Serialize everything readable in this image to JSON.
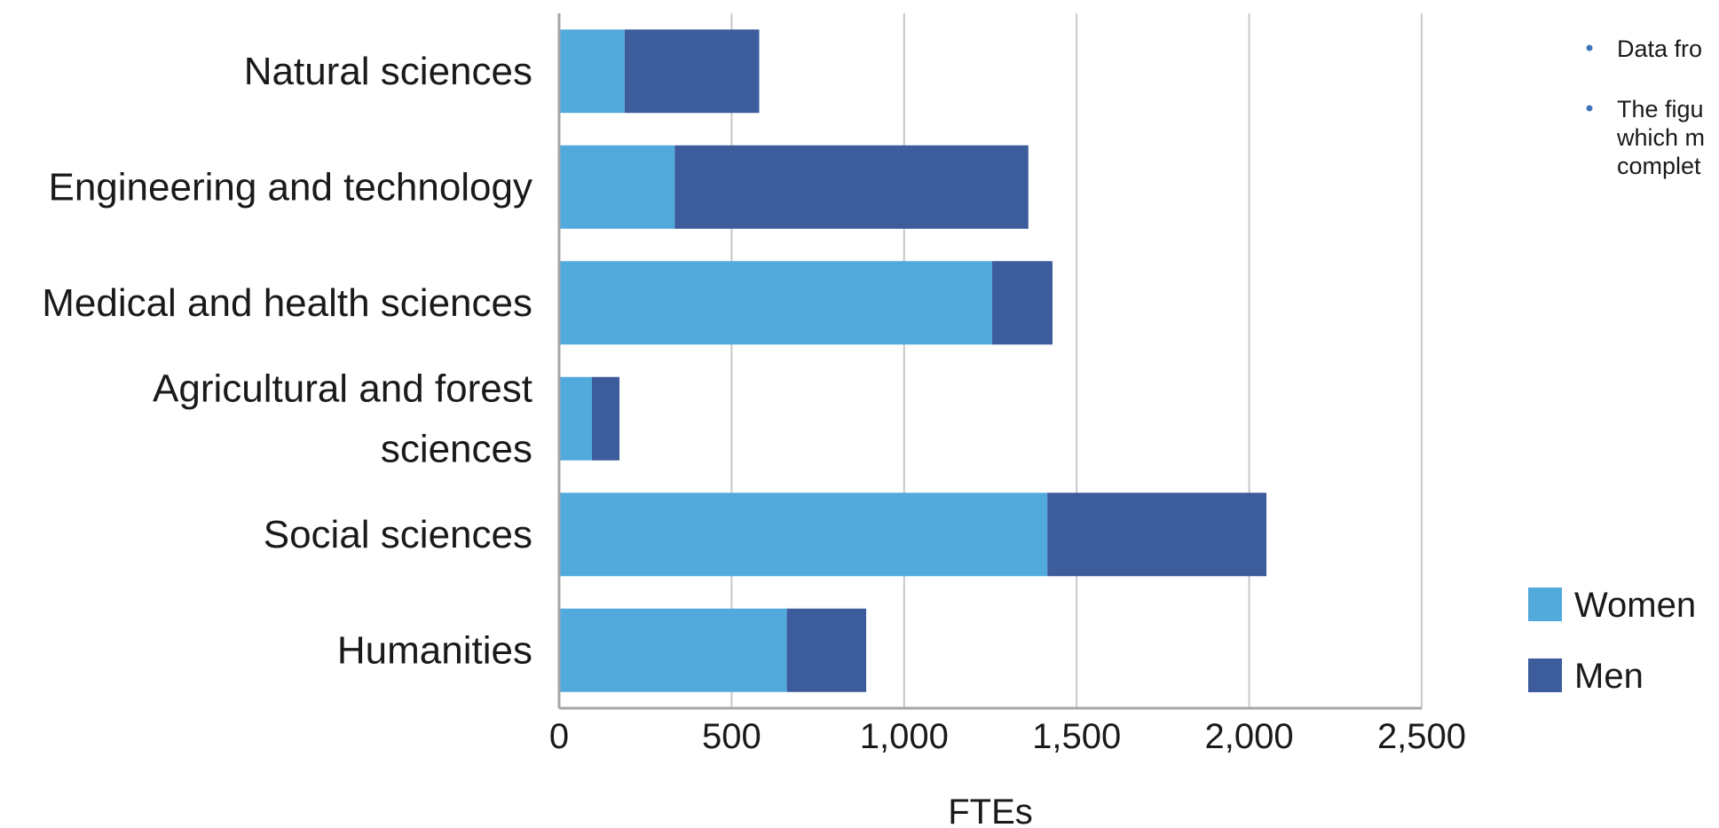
{
  "chart_data": {
    "type": "bar",
    "orientation": "horizontal",
    "stacked": true,
    "categories": [
      "Natural sciences",
      "Engineering and technology",
      "Medical and health sciences",
      "Agricultural and forest sciences",
      "Social sciences",
      "Humanities"
    ],
    "category_lines": [
      [
        "Natural sciences"
      ],
      [
        "Engineering and technology"
      ],
      [
        "Medical and health sciences"
      ],
      [
        "Agricultural and forest",
        "sciences"
      ],
      [
        "Social sciences"
      ],
      [
        "Humanities"
      ]
    ],
    "series": [
      {
        "name": "Women",
        "color": "#52aadc",
        "values": [
          190,
          335,
          1255,
          95,
          1415,
          660
        ]
      },
      {
        "name": "Men",
        "color": "#3c5c9c",
        "values": [
          390,
          1025,
          175,
          80,
          635,
          230
        ]
      }
    ],
    "xlim": [
      0,
      2500
    ],
    "xticks": [
      0,
      500,
      1000,
      1500,
      2000,
      2500
    ],
    "xtick_labels": [
      "0",
      "500",
      "1,000",
      "1,500",
      "2,000",
      "2,500"
    ],
    "xlabel": "FTEs",
    "ylabel": "",
    "title": "",
    "grid": "vertical",
    "legend_position": "right"
  },
  "notes": [
    {
      "lines": [
        "Data fro"
      ]
    },
    {
      "lines": [
        "The figu",
        "which m",
        "complet"
      ]
    }
  ],
  "colors": {
    "women": "#52aadc",
    "men": "#3c5c9c",
    "gridline": "#c8c8c8",
    "axis": "#a6a6a6",
    "bullet": "#3e74b8"
  }
}
